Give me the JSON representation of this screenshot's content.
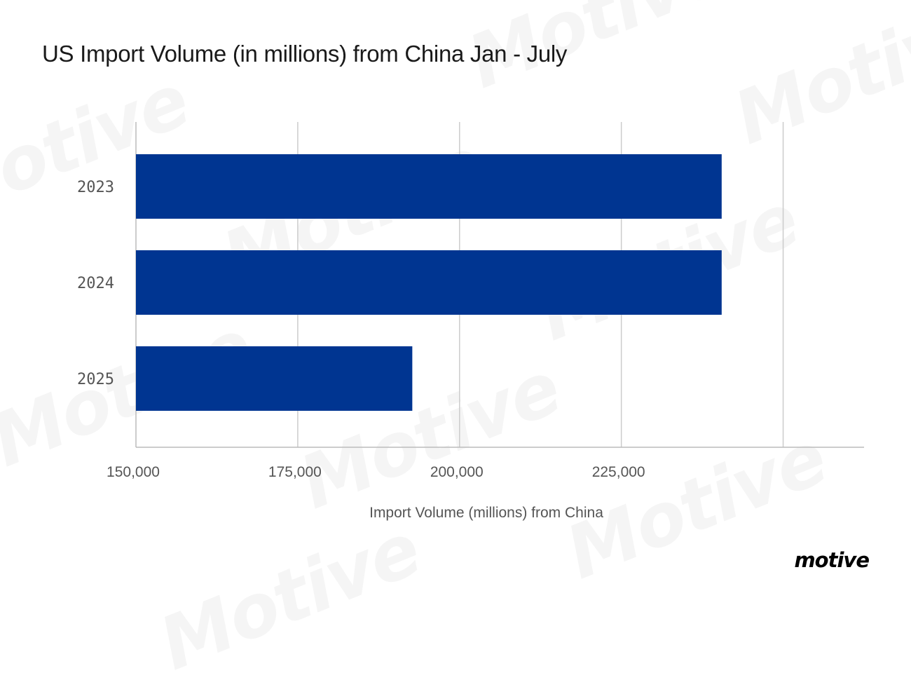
{
  "chart_data": {
    "type": "bar",
    "orientation": "horizontal",
    "title": "US Import Volume (in millions) from China Jan - July",
    "xlabel": "Import Volume (millions) from China",
    "ylabel": "",
    "categories": [
      "2023",
      "2024",
      "2025"
    ],
    "values": [
      240500,
      240500,
      192700
    ],
    "xlim": [
      150000,
      262500
    ],
    "x_ticks": [
      150000,
      175000,
      200000,
      225000,
      250000
    ],
    "x_tick_labels": [
      "150,000",
      "175,000",
      "200,000",
      "225,000",
      ""
    ],
    "grid": "vertical",
    "legend": "none",
    "bar_color": "#003591"
  },
  "watermark_text": "Motive",
  "logo_text": "motive",
  "colors": {
    "bar": "#003591",
    "grid": "#cccccc",
    "axis": "#bbbbbb",
    "tick_text": "#555555",
    "title": "#1a1a1a"
  }
}
